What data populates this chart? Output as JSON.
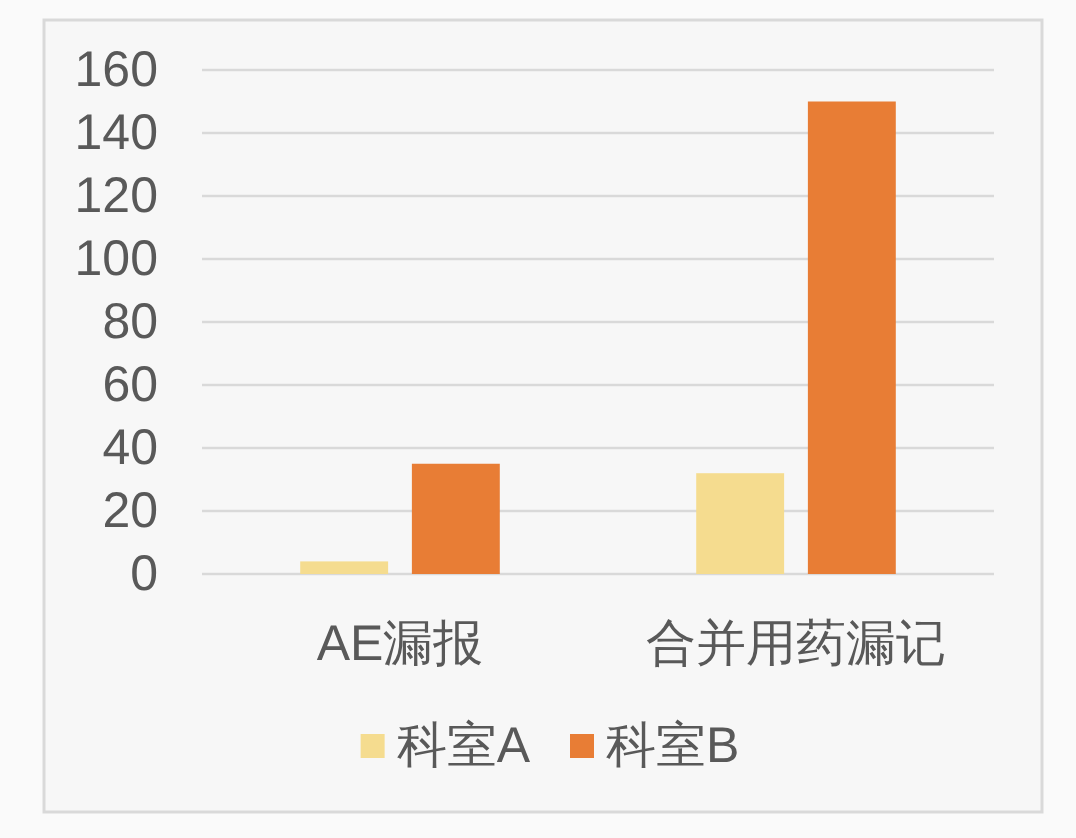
{
  "chart_data": {
    "type": "bar",
    "categories": [
      "AE漏报",
      "合并用药漏记"
    ],
    "series": [
      {
        "name": "科室A",
        "color": "#f5dc8f",
        "values": [
          4,
          32
        ]
      },
      {
        "name": "科室B",
        "color": "#e87d35",
        "values": [
          35,
          150
        ]
      }
    ],
    "ylim": [
      0,
      160
    ],
    "yticks": [
      0,
      20,
      40,
      60,
      80,
      100,
      120,
      140,
      160
    ],
    "grid": "y",
    "legend": "bottom"
  }
}
